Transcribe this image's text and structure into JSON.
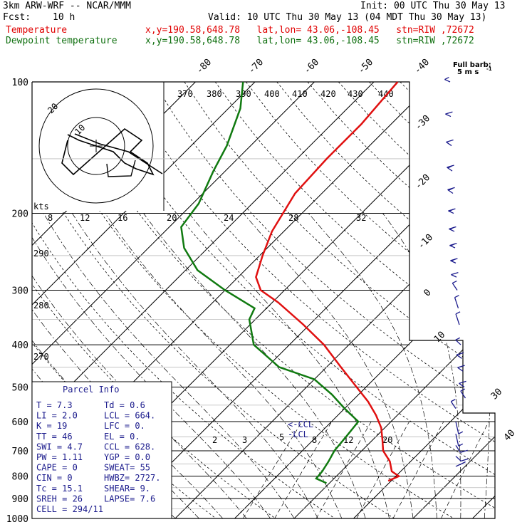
{
  "header": {
    "model": "3km ARW-WRF -- NCAR/MMM",
    "init": "Init: 00 UTC Thu 30 May 13",
    "fcst_label": "Fcst:",
    "fcst_value": "10 h",
    "valid": "Valid: 10 UTC Thu 30 May 13 (04 MDT Thu 30 May 13)",
    "temp_label": "Temperature",
    "temp_info": "x,y=190.58,648.78   lat,lon= 43.06,-108.45   stn=RIW ,72672",
    "dew_label": "Dewpoint temperature",
    "dew_info": "x,y=190.58,648.78   lat,lon= 43.06,-108.45   stn=RIW ,72672"
  },
  "colors": {
    "temperature": "#e01010",
    "dewpoint": "#107a10",
    "barbs": "#1a1a8c",
    "parcel_box_text": "#1a1a8c"
  },
  "full_barb": {
    "line1": "Full barb:",
    "line2": "5 m s",
    "sup": "-1"
  },
  "chart_data": {
    "type": "skew-t",
    "pressure_labels": [
      "100",
      "200",
      "300",
      "400",
      "500",
      "600",
      "700",
      "800",
      "900",
      "1000"
    ],
    "pressure_levels": [
      100,
      200,
      300,
      400,
      500,
      600,
      700,
      800,
      900,
      1000
    ],
    "isotherms": [
      -80,
      -70,
      -60,
      -50,
      -40,
      -30,
      -20,
      -10,
      0,
      10,
      20,
      30,
      40
    ],
    "isotherm_labels_top": [
      "-80",
      "-70",
      "-60",
      "-50",
      "-40"
    ],
    "isotherm_labels_right": [
      "-30",
      "-20",
      "-10",
      "0",
      "10",
      "30",
      "40"
    ],
    "theta_labels": [
      "370",
      "380",
      "390",
      "400",
      "410",
      "420",
      "430",
      "440"
    ],
    "mixing_ratio_labels": [
      "2",
      "3",
      "5",
      "8",
      "12",
      "20"
    ],
    "thetae_labels": [
      "290",
      "280",
      "270"
    ],
    "hodograph": {
      "kts_label": "kts",
      "speed_labels": [
        "8",
        "12",
        "16",
        "20",
        "24",
        "28",
        "32"
      ],
      "ring_labels": [
        "10",
        "20"
      ],
      "trace": [
        [
          -5,
          2
        ],
        [
          -3,
          1
        ],
        [
          0,
          0
        ],
        [
          3,
          -1
        ],
        [
          4,
          -2
        ],
        [
          5,
          -3
        ],
        [
          7,
          -4
        ],
        [
          10,
          -5
        ],
        [
          9,
          -3
        ],
        [
          6,
          -1
        ],
        [
          8,
          1
        ],
        [
          5,
          3
        ],
        [
          -4,
          -5
        ],
        [
          -6,
          -3
        ],
        [
          -5,
          1
        ]
      ]
    },
    "temperature_profile": [
      {
        "p": 820,
        "t": 9.5
      },
      {
        "p": 800,
        "t": 10.5
      },
      {
        "p": 780,
        "t": 8.5
      },
      {
        "p": 740,
        "t": 6.5
      },
      {
        "p": 700,
        "t": 3.6
      },
      {
        "p": 660,
        "t": 1.6
      },
      {
        "p": 620,
        "t": -0.6
      },
      {
        "p": 580,
        "t": -3.6
      },
      {
        "p": 540,
        "t": -7.2
      },
      {
        "p": 500,
        "t": -11.6
      },
      {
        "p": 450,
        "t": -17.6
      },
      {
        "p": 400,
        "t": -24.2
      },
      {
        "p": 360,
        "t": -31.0
      },
      {
        "p": 320,
        "t": -39.0
      },
      {
        "p": 300,
        "t": -44.0
      },
      {
        "p": 280,
        "t": -47.0
      },
      {
        "p": 250,
        "t": -49.5
      },
      {
        "p": 220,
        "t": -52.0
      },
      {
        "p": 180,
        "t": -54.5
      },
      {
        "p": 150,
        "t": -55.0
      },
      {
        "p": 125,
        "t": -55.0
      },
      {
        "p": 100,
        "t": -56.0
      }
    ],
    "dewpoint_profile": [
      {
        "p": 830,
        "t": -0.5
      },
      {
        "p": 810,
        "t": -3.0
      },
      {
        "p": 780,
        "t": -3.2
      },
      {
        "p": 740,
        "t": -3.8
      },
      {
        "p": 700,
        "t": -4.6
      },
      {
        "p": 650,
        "t": -5.0
      },
      {
        "p": 600,
        "t": -5.5
      },
      {
        "p": 560,
        "t": -10.0
      },
      {
        "p": 520,
        "t": -14.5
      },
      {
        "p": 480,
        "t": -20.0
      },
      {
        "p": 450,
        "t": -28.0
      },
      {
        "p": 400,
        "t": -36.0
      },
      {
        "p": 350,
        "t": -41.0
      },
      {
        "p": 330,
        "t": -42.0
      },
      {
        "p": 300,
        "t": -50.0
      },
      {
        "p": 270,
        "t": -58.0
      },
      {
        "p": 240,
        "t": -64.0
      },
      {
        "p": 215,
        "t": -68.0
      },
      {
        "p": 190,
        "t": -69.0
      },
      {
        "p": 160,
        "t": -72.0
      },
      {
        "p": 140,
        "t": -74.0
      },
      {
        "p": 115,
        "t": -78.0
      },
      {
        "p": 100,
        "t": -82.0
      }
    ],
    "ccl_label": "<-CCL",
    "lcl_label": "-LCL",
    "wind_barbs": [
      {
        "p": 100,
        "spd": 5,
        "dir": 280
      },
      {
        "p": 120,
        "spd": 10,
        "dir": 280
      },
      {
        "p": 140,
        "spd": 10,
        "dir": 285
      },
      {
        "p": 160,
        "spd": 15,
        "dir": 285
      },
      {
        "p": 180,
        "spd": 15,
        "dir": 285
      },
      {
        "p": 200,
        "spd": 15,
        "dir": 280
      },
      {
        "p": 220,
        "spd": 15,
        "dir": 280
      },
      {
        "p": 240,
        "spd": 15,
        "dir": 280
      },
      {
        "p": 260,
        "spd": 15,
        "dir": 280
      },
      {
        "p": 280,
        "spd": 10,
        "dir": 280
      },
      {
        "p": 300,
        "spd": 5,
        "dir": 300
      },
      {
        "p": 330,
        "spd": 5,
        "dir": 320
      },
      {
        "p": 360,
        "spd": 5,
        "dir": 320
      },
      {
        "p": 400,
        "spd": 5,
        "dir": 290
      },
      {
        "p": 430,
        "spd": 10,
        "dir": 285
      },
      {
        "p": 460,
        "spd": 10,
        "dir": 285
      },
      {
        "p": 500,
        "spd": 10,
        "dir": 285
      },
      {
        "p": 530,
        "spd": 5,
        "dir": 300
      },
      {
        "p": 560,
        "spd": 5,
        "dir": 300
      },
      {
        "p": 600,
        "spd": 5,
        "dir": 150
      },
      {
        "p": 640,
        "spd": 5,
        "dir": 150
      },
      {
        "p": 680,
        "spd": 10,
        "dir": 120
      },
      {
        "p": 720,
        "spd": 10,
        "dir": 110
      },
      {
        "p": 760,
        "spd": 5,
        "dir": 80
      }
    ]
  },
  "parcel_info": {
    "title": "Parcel Info",
    "rows": [
      {
        "a": "T   =    7.3",
        "b": "Td  =   0.6"
      },
      {
        "a": "LI  =    2.0",
        "b": "LCL =  664."
      },
      {
        "a": "K   =     19",
        "b": "LFC =    0."
      },
      {
        "a": "TT  =     46",
        "b": "EL  =    0."
      },
      {
        "a": "SWI =    4.7",
        "b": "CCL =  628."
      },
      {
        "a": "PW  =   1.11",
        "b": "YGP =   0.0"
      },
      {
        "a": "CAPE =     0",
        "b": "SWEAT=   55"
      },
      {
        "a": "CIN  =     0",
        "b": "HWBZ= 2727."
      },
      {
        "a": "Tc  =   15.1",
        "b": "SHEAR=   9."
      },
      {
        "a": "SREH =    26",
        "b": "LAPSE=  7.6"
      },
      {
        "a": "CELL = 294/11",
        "b": ""
      }
    ]
  }
}
